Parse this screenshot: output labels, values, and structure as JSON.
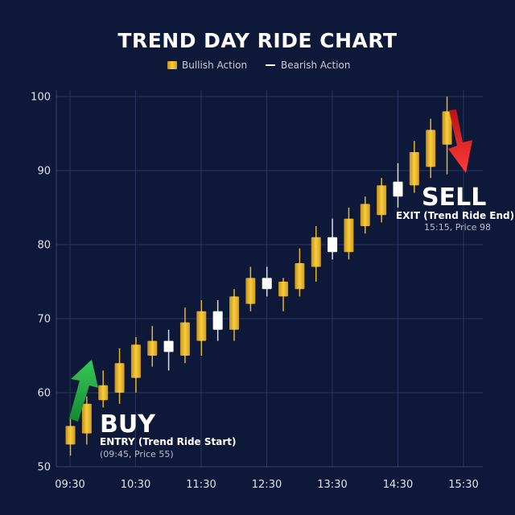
{
  "chart_data": {
    "type": "candlestick",
    "title": "TREND DAY RIDE CHART",
    "legend": [
      {
        "label": "Bullish Action",
        "color": "#f2c230"
      },
      {
        "label": "Bearish Action",
        "color": "#ffffff"
      }
    ],
    "xlabel": "",
    "ylabel": "",
    "ylim": [
      50,
      100
    ],
    "yticks": [
      50,
      60,
      70,
      80,
      90,
      100
    ],
    "xticks": [
      "09:30",
      "10:30",
      "11:30",
      "12:30",
      "13:30",
      "14:30",
      "15:30"
    ],
    "candles": [
      {
        "open": 53.0,
        "close": 55.5,
        "low": 51.5,
        "high": 56.5,
        "type": "bull"
      },
      {
        "open": 54.5,
        "close": 58.5,
        "low": 53.0,
        "high": 59.5,
        "type": "bull"
      },
      {
        "open": 59.0,
        "close": 61.0,
        "low": 58.0,
        "high": 63.0,
        "type": "bull"
      },
      {
        "open": 60.0,
        "close": 64.0,
        "low": 58.5,
        "high": 66.0,
        "type": "bull"
      },
      {
        "open": 62.0,
        "close": 66.5,
        "low": 60.0,
        "high": 67.5,
        "type": "bull"
      },
      {
        "open": 65.0,
        "close": 67.0,
        "low": 63.5,
        "high": 69.0,
        "type": "bull"
      },
      {
        "open": 67.0,
        "close": 65.5,
        "low": 63.0,
        "high": 68.5,
        "type": "bear"
      },
      {
        "open": 65.0,
        "close": 69.5,
        "low": 64.0,
        "high": 71.5,
        "type": "bull"
      },
      {
        "open": 67.0,
        "close": 71.0,
        "low": 65.0,
        "high": 72.5,
        "type": "bull"
      },
      {
        "open": 71.0,
        "close": 68.5,
        "low": 67.0,
        "high": 72.5,
        "type": "bear"
      },
      {
        "open": 68.5,
        "close": 73.0,
        "low": 67.0,
        "high": 74.0,
        "type": "bull"
      },
      {
        "open": 72.0,
        "close": 75.5,
        "low": 71.0,
        "high": 77.0,
        "type": "bull"
      },
      {
        "open": 75.5,
        "close": 74.0,
        "low": 73.0,
        "high": 77.0,
        "type": "bear"
      },
      {
        "open": 73.0,
        "close": 75.0,
        "low": 71.0,
        "high": 75.5,
        "type": "bull"
      },
      {
        "open": 74.0,
        "close": 77.5,
        "low": 73.0,
        "high": 79.5,
        "type": "bull"
      },
      {
        "open": 77.0,
        "close": 81.0,
        "low": 75.0,
        "high": 82.5,
        "type": "bull"
      },
      {
        "open": 81.0,
        "close": 79.0,
        "low": 78.0,
        "high": 83.5,
        "type": "bear"
      },
      {
        "open": 79.0,
        "close": 83.5,
        "low": 78.0,
        "high": 85.0,
        "type": "bull"
      },
      {
        "open": 82.5,
        "close": 85.5,
        "low": 81.5,
        "high": 86.5,
        "type": "bull"
      },
      {
        "open": 84.0,
        "close": 88.0,
        "low": 83.0,
        "high": 89.0,
        "type": "bull"
      },
      {
        "open": 88.5,
        "close": 86.5,
        "low": 85.0,
        "high": 91.0,
        "type": "bear"
      },
      {
        "open": 88.0,
        "close": 92.5,
        "low": 87.0,
        "high": 94.0,
        "type": "bull"
      },
      {
        "open": 90.5,
        "close": 95.5,
        "low": 89.0,
        "high": 97.0,
        "type": "bull"
      },
      {
        "open": 93.5,
        "close": 98.0,
        "low": 89.5,
        "high": 100.0,
        "type": "bull"
      }
    ],
    "annotations": {
      "buy": {
        "label": "BUY",
        "sublabel": "ENTRY (Trend Ride Start)",
        "note": "(09:45, Price 55)",
        "color": "#27b046"
      },
      "sell": {
        "label": "SELL",
        "sublabel": "EXIT (Trend Ride End)",
        "note": "15:15, Price 98",
        "color": "#e32626"
      }
    }
  }
}
